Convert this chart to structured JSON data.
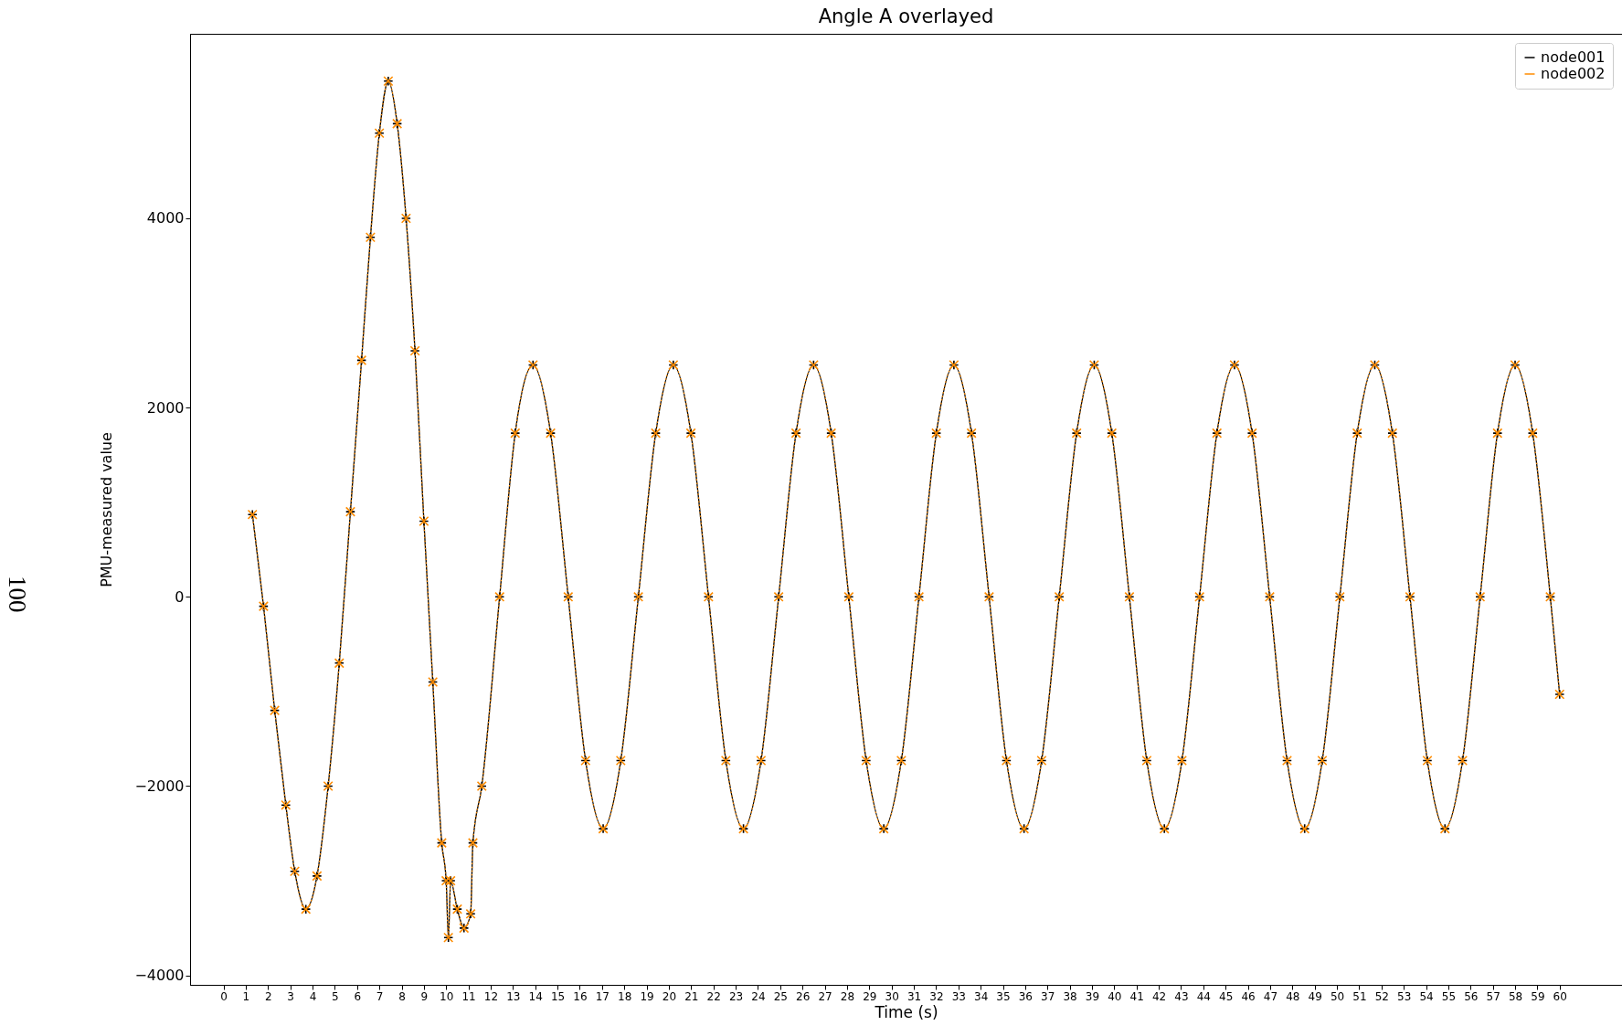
{
  "chart_data": {
    "type": "line",
    "title": "Angle A overlayed",
    "xlabel": "Time (s)",
    "ylabel": "PMU-measured value",
    "annotations": [
      "100"
    ],
    "x": [
      1.3,
      1.8,
      2.3,
      2.8,
      3.2,
      3.7,
      4.2,
      4.7,
      5.2,
      5.7,
      6.2,
      6.6,
      7.0,
      7.4,
      7.8,
      8.2,
      8.6,
      9.0,
      9.4,
      9.8,
      10.0,
      10.1,
      10.2,
      10.5,
      10.8,
      11.1,
      11.2,
      11.6,
      12.4,
      13.1,
      13.9,
      14.69,
      15.48,
      16.26,
      17.05,
      17.84,
      18.63,
      19.41,
      20.2,
      20.99,
      21.78,
      22.56,
      23.35,
      24.14,
      24.93,
      25.71,
      26.5,
      27.29,
      28.08,
      28.86,
      29.65,
      30.44,
      31.23,
      32.01,
      32.8,
      33.59,
      34.38,
      35.16,
      35.95,
      36.74,
      37.53,
      38.31,
      39.1,
      39.89,
      40.68,
      41.46,
      42.25,
      43.04,
      43.83,
      44.61,
      45.4,
      46.19,
      46.98,
      47.76,
      48.55,
      49.34,
      50.13,
      50.91,
      51.7,
      52.49,
      53.28,
      54.06,
      54.85,
      55.64,
      56.43,
      57.21,
      58.0,
      58.79,
      59.58,
      60.0
    ],
    "series": [
      {
        "name": "node001",
        "color": "#000000",
        "marker": "plus",
        "line_style": "solid",
        "values": [
          870,
          -100,
          -1200,
          -2200,
          -2900,
          -3300,
          -2950,
          -2000,
          -700,
          900,
          2500,
          3800,
          4900,
          5450,
          5000,
          4000,
          2600,
          800,
          -900,
          -2600,
          -3000,
          -3600,
          -3000,
          -3300,
          -3500,
          -3350,
          -2600,
          -2000,
          0,
          1730,
          2450,
          1730,
          0,
          -1730,
          -2450,
          -1730,
          0,
          1730,
          2450,
          1730,
          0,
          -1730,
          -2450,
          -1730,
          0,
          1730,
          2450,
          1730,
          0,
          -1730,
          -2450,
          -1730,
          0,
          1730,
          2450,
          1730,
          0,
          -1730,
          -2450,
          -1730,
          0,
          1730,
          2450,
          1730,
          0,
          -1730,
          -2450,
          -1730,
          0,
          1730,
          2450,
          1730,
          0,
          -1730,
          -2450,
          -1730,
          0,
          1730,
          2450,
          1730,
          0,
          -1730,
          -2450,
          -1730,
          0,
          1730,
          2450,
          1730,
          0,
          -1030
        ]
      },
      {
        "name": "node002",
        "color": "#ff8c00",
        "marker": "cross",
        "line_style": "dotted",
        "values": [
          870,
          -100,
          -1200,
          -2200,
          -2900,
          -3300,
          -2950,
          -2000,
          -700,
          900,
          2500,
          3800,
          4900,
          5450,
          5000,
          4000,
          2600,
          800,
          -900,
          -2600,
          -3000,
          -3600,
          -3000,
          -3300,
          -3500,
          -3350,
          -2600,
          -2000,
          0,
          1730,
          2450,
          1730,
          0,
          -1730,
          -2450,
          -1730,
          0,
          1730,
          2450,
          1730,
          0,
          -1730,
          -2450,
          -1730,
          0,
          1730,
          2450,
          1730,
          0,
          -1730,
          -2450,
          -1730,
          0,
          1730,
          2450,
          1730,
          0,
          -1730,
          -2450,
          -1730,
          0,
          1730,
          2450,
          1730,
          0,
          -1730,
          -2450,
          -1730,
          0,
          1730,
          2450,
          1730,
          0,
          -1730,
          -2450,
          -1730,
          0,
          1730,
          2450,
          1730,
          0,
          -1730,
          -2450,
          -1730,
          0,
          1730,
          2450,
          1730,
          0,
          -1030
        ]
      }
    ],
    "xlim": [
      -1.5,
      62.8
    ],
    "ylim": [
      -4100,
      5950
    ],
    "xticks": [
      0,
      1,
      2,
      3,
      4,
      5,
      6,
      7,
      8,
      9,
      10,
      11,
      12,
      13,
      14,
      15,
      16,
      17,
      18,
      19,
      20,
      21,
      22,
      23,
      24,
      25,
      26,
      27,
      28,
      29,
      30,
      31,
      32,
      33,
      34,
      35,
      36,
      37,
      38,
      39,
      40,
      41,
      42,
      43,
      44,
      45,
      46,
      47,
      48,
      49,
      50,
      51,
      52,
      53,
      54,
      55,
      56,
      57,
      58,
      59,
      60
    ],
    "yticks": [
      -4000,
      -2000,
      0,
      2000,
      4000
    ],
    "legend": "top right"
  }
}
